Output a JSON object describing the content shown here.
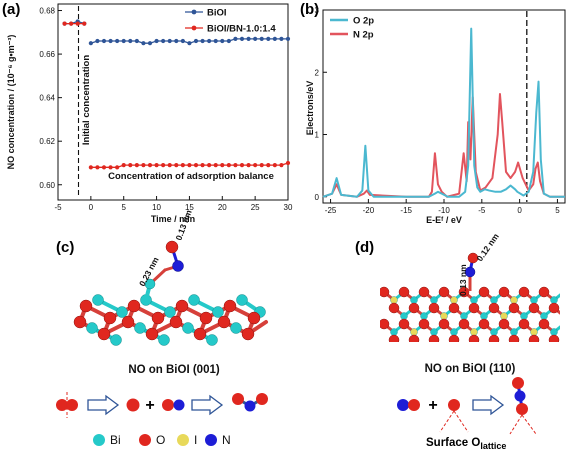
{
  "panels": {
    "a": {
      "tag": "(a)"
    },
    "b": {
      "tag": "(b)"
    },
    "c": {
      "tag": "(c)",
      "caption": "NO on BiOI (001)",
      "bond_length_1": "0.13 nm",
      "bond_length_2": "0.23 nm"
    },
    "d": {
      "tag": "(d)",
      "caption": "NO on BiOI (110)",
      "bond_length_1": "0.13 nm",
      "bond_length_2": "0.12 nm",
      "surface_label_main": "Surface O",
      "surface_label_sub": "lattice"
    }
  },
  "atom_legend": [
    {
      "symbol": "Bi",
      "color": "#25c9c9"
    },
    {
      "symbol": "O",
      "color": "#e0271f"
    },
    {
      "symbol": "I",
      "color": "#e8d95a"
    },
    {
      "symbol": "N",
      "color": "#1d1dd6"
    }
  ],
  "scheme_symbols": {
    "plus": "+"
  },
  "chart_data": [
    {
      "type": "line",
      "panel": "a",
      "xlabel": "Time / min",
      "ylabel": "NO concentration / (10⁻⁶ g•m⁻³)",
      "xlim": [
        -5,
        30
      ],
      "ylim": [
        0.593,
        0.683
      ],
      "xticks": [
        -5,
        0,
        5,
        10,
        15,
        20,
        25,
        30
      ],
      "yticks": [
        0.6,
        0.62,
        0.64,
        0.66,
        0.68
      ],
      "ytick_labels": [
        "0.60",
        "0.62",
        "0.64",
        "0.66",
        "0.68"
      ],
      "legend_position": "top-right",
      "annotations": [
        "Initial concentration",
        "Concentration of adsorption balance"
      ],
      "series": [
        {
          "name": "BiOI",
          "color": "#2f5597",
          "x": [
            -4,
            -3,
            -2,
            -1,
            0,
            1,
            2,
            3,
            4,
            5,
            6,
            7,
            8,
            9,
            10,
            11,
            12,
            13,
            14,
            15,
            16,
            17,
            18,
            19,
            20,
            21,
            22,
            23,
            24,
            25,
            26,
            27,
            28,
            29,
            30
          ],
          "y": [
            0.674,
            0.674,
            0.675,
            0.674,
            0.665,
            0.666,
            0.666,
            0.666,
            0.666,
            0.666,
            0.666,
            0.666,
            0.665,
            0.665,
            0.666,
            0.666,
            0.666,
            0.666,
            0.666,
            0.665,
            0.666,
            0.666,
            0.666,
            0.666,
            0.666,
            0.666,
            0.667,
            0.667,
            0.667,
            0.667,
            0.667,
            0.667,
            0.667,
            0.667,
            0.667
          ]
        },
        {
          "name": "BiOI/BN-1.0:1.4",
          "color": "#e0271f",
          "x": [
            -4,
            -3,
            -2,
            -1,
            0,
            1,
            2,
            3,
            4,
            5,
            6,
            7,
            8,
            9,
            10,
            11,
            12,
            13,
            14,
            15,
            16,
            17,
            18,
            19,
            20,
            21,
            22,
            23,
            24,
            25,
            26,
            27,
            28,
            29,
            30
          ],
          "y": [
            0.674,
            0.674,
            0.674,
            0.674,
            0.608,
            0.608,
            0.608,
            0.608,
            0.608,
            0.609,
            0.609,
            0.609,
            0.609,
            0.609,
            0.609,
            0.609,
            0.609,
            0.609,
            0.609,
            0.609,
            0.609,
            0.609,
            0.609,
            0.609,
            0.609,
            0.609,
            0.609,
            0.609,
            0.609,
            0.609,
            0.609,
            0.609,
            0.609,
            0.609,
            0.61
          ]
        }
      ]
    },
    {
      "type": "line",
      "panel": "b",
      "xlabel": "E-Eᶠ / eV",
      "ylabel": "Electrons/eV",
      "xlim": [
        -26,
        6
      ],
      "ylim": [
        -0.1,
        3.0
      ],
      "xticks": [
        -25,
        -20,
        -15,
        -10,
        -5,
        0,
        5
      ],
      "yticks": [
        0,
        1,
        2,
        3
      ],
      "fermi_level": 0,
      "legend_position": "top-left",
      "series": [
        {
          "name": "O 2p",
          "color": "#4bb8d0",
          "x": [
            -26,
            -24.8,
            -24.2,
            -23.6,
            -21.5,
            -20.8,
            -20.4,
            -20.0,
            -19.3,
            -15,
            -12,
            -11.2,
            -10.8,
            -10.3,
            -9.5,
            -8,
            -7.2,
            -6.8,
            -6.4,
            -6.0,
            -5.6,
            -5.2,
            -4.6,
            -4.0,
            -3.2,
            -2.5,
            -1.8,
            -1.2,
            -0.6,
            -0.3,
            0.5,
            1.2,
            1.8,
            2.2,
            2.5,
            2.8,
            3.2,
            4,
            6
          ],
          "y": [
            0,
            0.05,
            0.3,
            0.03,
            0,
            0.1,
            0.82,
            0.1,
            0,
            0,
            0,
            0.05,
            0.08,
            0.05,
            0,
            0,
            0.08,
            0.5,
            2.7,
            0.5,
            0.15,
            0.08,
            0.12,
            0.1,
            0.08,
            0.08,
            0.12,
            0.18,
            0.12,
            0.08,
            0.02,
            0.08,
            0.4,
            1.35,
            1.85,
            0.6,
            0.05,
            0,
            0
          ]
        },
        {
          "name": "N 2p",
          "color": "#e2545d",
          "x": [
            -26,
            -24.8,
            -24.2,
            -23.6,
            -21.5,
            -20.6,
            -20.2,
            -19.8,
            -15,
            -12,
            -11.6,
            -11.2,
            -10.8,
            -10.3,
            -9.6,
            -8,
            -7.4,
            -7.0,
            -6.8,
            -6.5,
            -6.2,
            -5.8,
            -5.2,
            -4.5,
            -3.6,
            -2.9,
            -2.6,
            -2.3,
            -1.8,
            -1.2,
            -0.6,
            -0.2,
            0.4,
            1.2,
            1.8,
            2.1,
            2.4,
            2.7,
            3.2,
            4,
            6
          ],
          "y": [
            0,
            0.05,
            0.2,
            0.03,
            0,
            0.05,
            0.1,
            0.03,
            0,
            0,
            0.08,
            0.7,
            0.2,
            0.08,
            0,
            0.05,
            0.7,
            0.25,
            1.2,
            0.6,
            1.6,
            0.4,
            0.1,
            0.15,
            0.3,
            1.0,
            1.65,
            1.2,
            0.4,
            0.3,
            0.4,
            0.55,
            0.3,
            0.1,
            0.2,
            0.45,
            0.55,
            0.25,
            0.05,
            0,
            0
          ]
        }
      ]
    }
  ]
}
